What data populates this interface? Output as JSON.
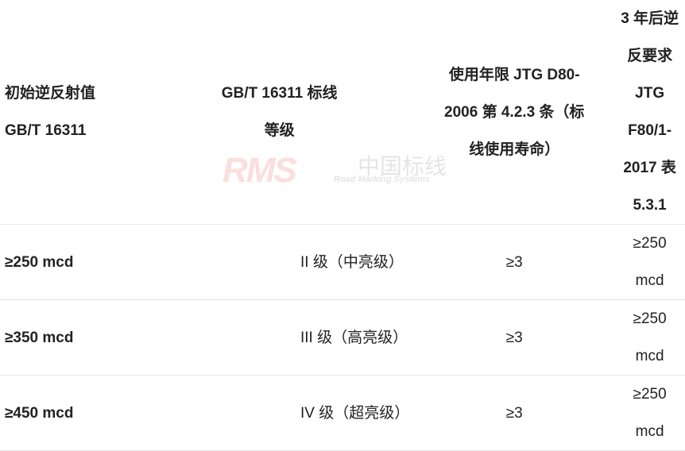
{
  "headers": [
    [
      "初始逆反射值",
      "GB/T 16311"
    ],
    [
      "GB/T 16311 标线",
      "等级"
    ],
    [
      "使用年限 JTG D80-",
      "2006 第 4.2.3 条（标",
      "线使用寿命）"
    ],
    [
      "3 年后逆反要求 JTG",
      "F80/1-2017  表 5.3.1"
    ]
  ],
  "rows": [
    [
      "≥250 mcd",
      "II 级（中亮级）",
      "≥3",
      "≥250 mcd"
    ],
    [
      "≥350 mcd",
      "III 级（高亮级）",
      "≥3",
      "≥250 mcd"
    ],
    [
      "≥450 mcd",
      "IV 级（超亮级）",
      "≥3",
      "≥250 mcd"
    ]
  ],
  "watermark": {
    "logo": "RMS",
    "cn": "中国标线",
    "en": "Road Marking Systems"
  }
}
